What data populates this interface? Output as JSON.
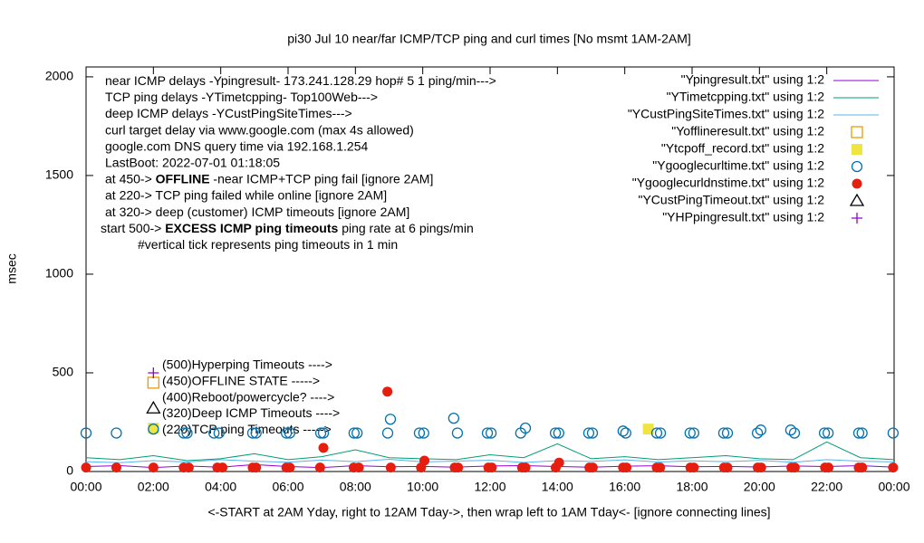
{
  "chart_data": {
    "type": "scatter",
    "title": "pi30 Jul 10  near/far ICMP/TCP ping and curl times [No msmt 1AM-2AM]",
    "x_label": "<-START at 2AM Yday, right to 12AM Tday->, then wrap left to 1AM Tday<- [ignore connecting lines]",
    "y_label": "msec",
    "xlim": [
      0,
      24
    ],
    "ylim": [
      0,
      2050
    ],
    "xticks": [
      {
        "value": 0,
        "label": "00:00"
      },
      {
        "value": 2,
        "label": "02:00"
      },
      {
        "value": 4,
        "label": "04:00"
      },
      {
        "value": 6,
        "label": "06:00"
      },
      {
        "value": 8,
        "label": "08:00"
      },
      {
        "value": 10,
        "label": "10:00"
      },
      {
        "value": 12,
        "label": "12:00"
      },
      {
        "value": 14,
        "label": "14:00"
      },
      {
        "value": 16,
        "label": "16:00"
      },
      {
        "value": 18,
        "label": "18:00"
      },
      {
        "value": 20,
        "label": "20:00"
      },
      {
        "value": 22,
        "label": "22:00"
      },
      {
        "value": 24,
        "label": "00:00"
      }
    ],
    "yticks": [
      0,
      500,
      1000,
      1500,
      2000
    ],
    "notes": [
      [
        "near ICMP delays -Ypingresult- 173.241.128.29 hop# 5 1 ping/min--->"
      ],
      [
        "TCP ping delays -YTimetcpping- Top100Web--->"
      ],
      [
        "deep ICMP delays -YCustPingSiteTimes--->"
      ],
      [
        "curl target delay via www.google.com (max 4s allowed)"
      ],
      [
        "google.com DNS query time via 192.168.1.254"
      ],
      [
        "LastBoot: 2022-07-01 01:18:05"
      ],
      [
        "at 450-> ",
        "OFFLINE",
        " -near ICMP+TCP ping fail [ignore 2AM]"
      ],
      [
        "at 220-> TCP ping failed while online [ignore 2AM]"
      ],
      [
        "at 320-> deep (customer) ICMP timeouts [ignore 2AM]"
      ],
      [
        "start 500-> ",
        "EXCESS ICMP ping timeouts",
        " ping rate at 6 pings/min"
      ],
      [
        "#vertical tick represents ping timeouts in 1 min"
      ]
    ],
    "annotations": [
      "(500)Hyperping Timeouts ---->",
      "(450)OFFLINE STATE ----->",
      "(400)Reboot/powercycle? ---->",
      "(320)Deep ICMP Timeouts ---->",
      "(220)TCP ping Timeouts ----->"
    ],
    "series": [
      {
        "name": "\"Ypingresult.txt\" using 1:2",
        "style": "line",
        "color": "#9400d3",
        "x": [
          0,
          1,
          2,
          3,
          4,
          5,
          6,
          7,
          8,
          9,
          10,
          11,
          12,
          13,
          14,
          15,
          16,
          17,
          18,
          19,
          20,
          21,
          22,
          23,
          24
        ],
        "values": [
          25,
          30,
          20,
          28,
          22,
          35,
          25,
          20,
          30,
          24,
          26,
          22,
          28,
          30,
          25,
          22,
          27,
          29,
          24,
          26,
          23,
          28,
          25,
          30,
          22
        ]
      },
      {
        "name": "\"YTimetcpping.txt\" using 1:2",
        "style": "line",
        "color": "#009e73",
        "x": [
          0,
          1,
          2,
          3,
          4,
          5,
          6,
          7,
          8,
          9,
          10,
          11,
          12,
          13,
          14,
          15,
          16,
          17,
          18,
          19,
          20,
          21,
          22,
          23,
          24
        ],
        "values": [
          70,
          60,
          80,
          55,
          65,
          90,
          60,
          75,
          110,
          70,
          65,
          60,
          85,
          70,
          140,
          65,
          75,
          60,
          70,
          80,
          65,
          60,
          150,
          70,
          60
        ]
      },
      {
        "name": "\"YCustPingSiteTimes.txt\" using 1:2",
        "style": "line",
        "color": "#56b4e9",
        "x": [
          0,
          1,
          2,
          3,
          4,
          5,
          6,
          7,
          8,
          9,
          10,
          11,
          12,
          13,
          14,
          15,
          16,
          17,
          18,
          19,
          20,
          21,
          22,
          23,
          24
        ],
        "values": [
          50,
          45,
          55,
          48,
          60,
          52,
          47,
          58,
          50,
          62,
          49,
          53,
          57,
          46,
          55,
          51,
          59,
          48,
          54,
          50,
          56,
          47,
          60,
          52,
          49
        ]
      },
      {
        "name": "\"Yofflineresult.txt\" using 1:2",
        "style": "open-square",
        "color": "#e69f00",
        "x": [
          2.0
        ],
        "values": [
          450
        ]
      },
      {
        "name": "\"Ytcpoff_record.txt\" using 1:2",
        "style": "filled-square",
        "color": "#f0e442",
        "x": [
          2.0,
          16.7
        ],
        "values": [
          220,
          215
        ]
      },
      {
        "name": "\"Ygooglecurltime.txt\" using 1:2",
        "style": "open-circle",
        "color": "#0072b2",
        "x": [
          0.0,
          0.9,
          2.0,
          2.9,
          3.0,
          3.8,
          3.95,
          4.95,
          5.05,
          5.95,
          6.05,
          6.97,
          7.05,
          7.96,
          8.05,
          8.96,
          9.04,
          9.9,
          10.03,
          10.92,
          11.03,
          11.92,
          12.03,
          12.91,
          13.05,
          13.94,
          14.04,
          14.93,
          15.04,
          15.95,
          16.03,
          16.95,
          17.06,
          17.94,
          18.05,
          18.94,
          19.05,
          19.94,
          20.04,
          20.93,
          21.04,
          21.93,
          22.04,
          22.95,
          23.05,
          23.97
        ],
        "values": [
          195,
          195,
          215,
          195,
          195,
          195,
          195,
          195,
          195,
          195,
          195,
          195,
          195,
          195,
          195,
          195,
          265,
          195,
          195,
          270,
          195,
          195,
          195,
          195,
          220,
          195,
          195,
          195,
          195,
          205,
          195,
          195,
          195,
          195,
          195,
          195,
          195,
          195,
          210,
          210,
          195,
          195,
          195,
          195,
          195,
          195
        ]
      },
      {
        "name": "\"Ygooglecurldnstime.txt\" using 1:2",
        "style": "filled-circle",
        "color": "#e51e10",
        "x": [
          0,
          0.9,
          2.0,
          2.9,
          3.05,
          3.9,
          4.05,
          4.95,
          5.05,
          5.95,
          6.05,
          6.95,
          7.05,
          7.95,
          8.1,
          8.95,
          9.05,
          9.95,
          10.05,
          10.95,
          11.05,
          11.95,
          12.05,
          12.95,
          13.05,
          13.95,
          14.05,
          14.95,
          15.05,
          15.95,
          16.05,
          16.95,
          17.05,
          17.95,
          18.05,
          18.95,
          19.05,
          19.95,
          20.05,
          20.95,
          21.05,
          21.95,
          22.05,
          22.95,
          23.05,
          23.97
        ],
        "values": [
          20,
          20,
          20,
          20,
          20,
          20,
          20,
          20,
          20,
          20,
          20,
          20,
          120,
          20,
          20,
          405,
          20,
          20,
          55,
          20,
          20,
          20,
          20,
          20,
          20,
          20,
          45,
          20,
          20,
          20,
          20,
          20,
          20,
          20,
          20,
          20,
          20,
          20,
          20,
          20,
          20,
          20,
          20,
          20,
          20,
          20
        ]
      },
      {
        "name": "\"YCustPingTimeout.txt\" using 1:2",
        "style": "triangle",
        "color": "#000000",
        "x": [
          2.0
        ],
        "values": [
          320
        ]
      },
      {
        "name": "\"YHPpingresult.txt\" using 1:2",
        "style": "plus",
        "color": "#9400d3",
        "x": [
          2.0
        ],
        "values": [
          500
        ]
      }
    ]
  }
}
